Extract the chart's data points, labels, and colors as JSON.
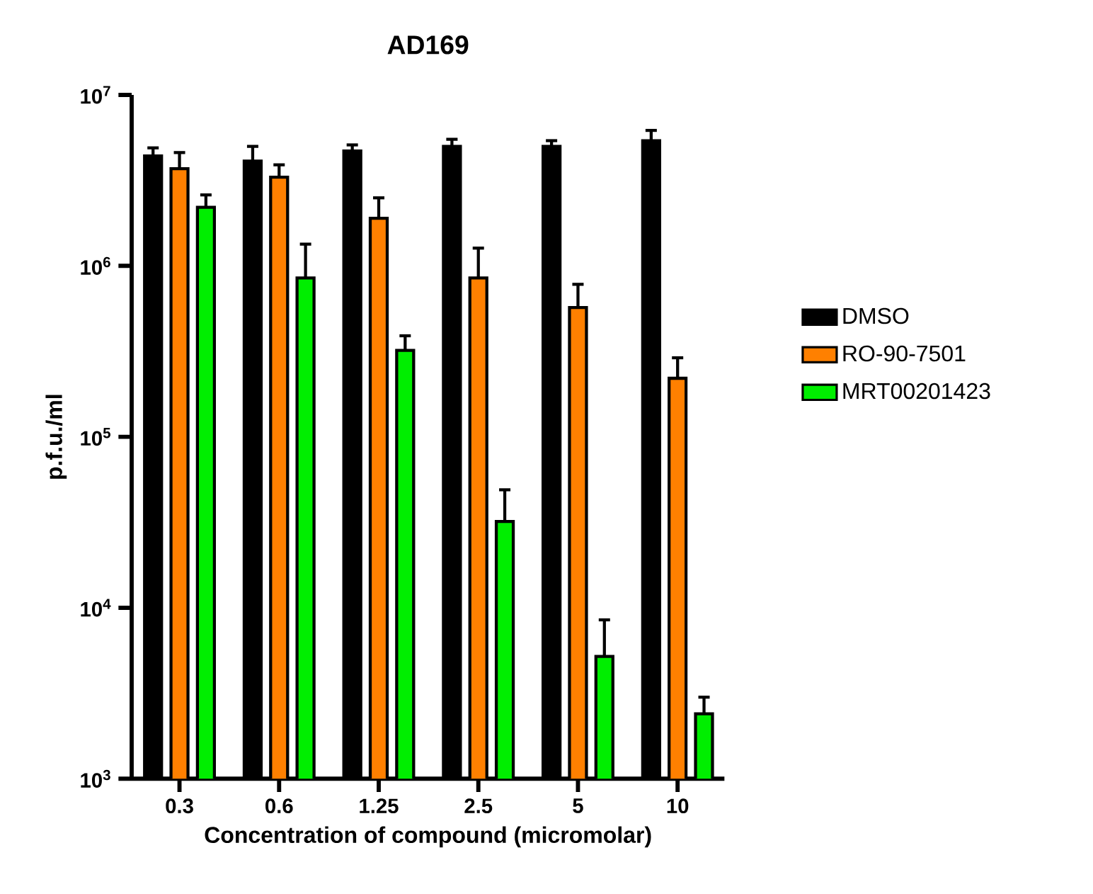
{
  "chart_data": {
    "type": "bar",
    "title": "AD169",
    "xlabel": "Concentration of compound (micromolar)",
    "ylabel": "p.f.u./ml",
    "categories": [
      "0.3",
      "0.6",
      "1.25",
      "2.5",
      "5",
      "10"
    ],
    "log": "y",
    "ylim": [
      1000,
      10000000
    ],
    "yticks": [
      {
        "value": 1000,
        "label": "10$^{3}$"
      },
      {
        "value": 10000,
        "label": "10$^{4}$"
      },
      {
        "value": 100000,
        "label": "10$^{5}$"
      },
      {
        "value": 1000000,
        "label": "10$^{6}$"
      },
      {
        "value": 10000000,
        "label": "10$^{7}$"
      }
    ],
    "grid": false,
    "legend": "right",
    "series": [
      {
        "name": "DMSO",
        "color": "#000000",
        "values": [
          4400000,
          4100000,
          4700000,
          5000000,
          5000000,
          5400000
        ],
        "errors": [
          [
            4400000,
            4900000
          ],
          [
            4100000,
            5000000
          ],
          [
            4700000,
            5100000
          ],
          [
            5000000,
            5500000
          ],
          [
            5000000,
            5400000
          ],
          [
            5400000,
            6200000
          ]
        ]
      },
      {
        "name": "RO-90-7501",
        "color": "#ff8000",
        "values": [
          3700000,
          3300000,
          1900000,
          850000,
          570000,
          220000
        ],
        "errors": [
          [
            3700000,
            4600000
          ],
          [
            3300000,
            3900000
          ],
          [
            1900000,
            2500000
          ],
          [
            850000,
            1270000
          ],
          [
            570000,
            780000
          ],
          [
            220000,
            290000
          ]
        ]
      },
      {
        "name": "MRT00201423",
        "color": "#00ee00",
        "values": [
          2200000,
          850000,
          320000,
          32000,
          5200,
          2400
        ],
        "errors": [
          [
            2200000,
            2600000
          ],
          [
            850000,
            1340000
          ],
          [
            320000,
            390000
          ],
          [
            32000,
            49000
          ],
          [
            5200,
            8500
          ],
          [
            2400,
            3000
          ]
        ]
      }
    ]
  }
}
